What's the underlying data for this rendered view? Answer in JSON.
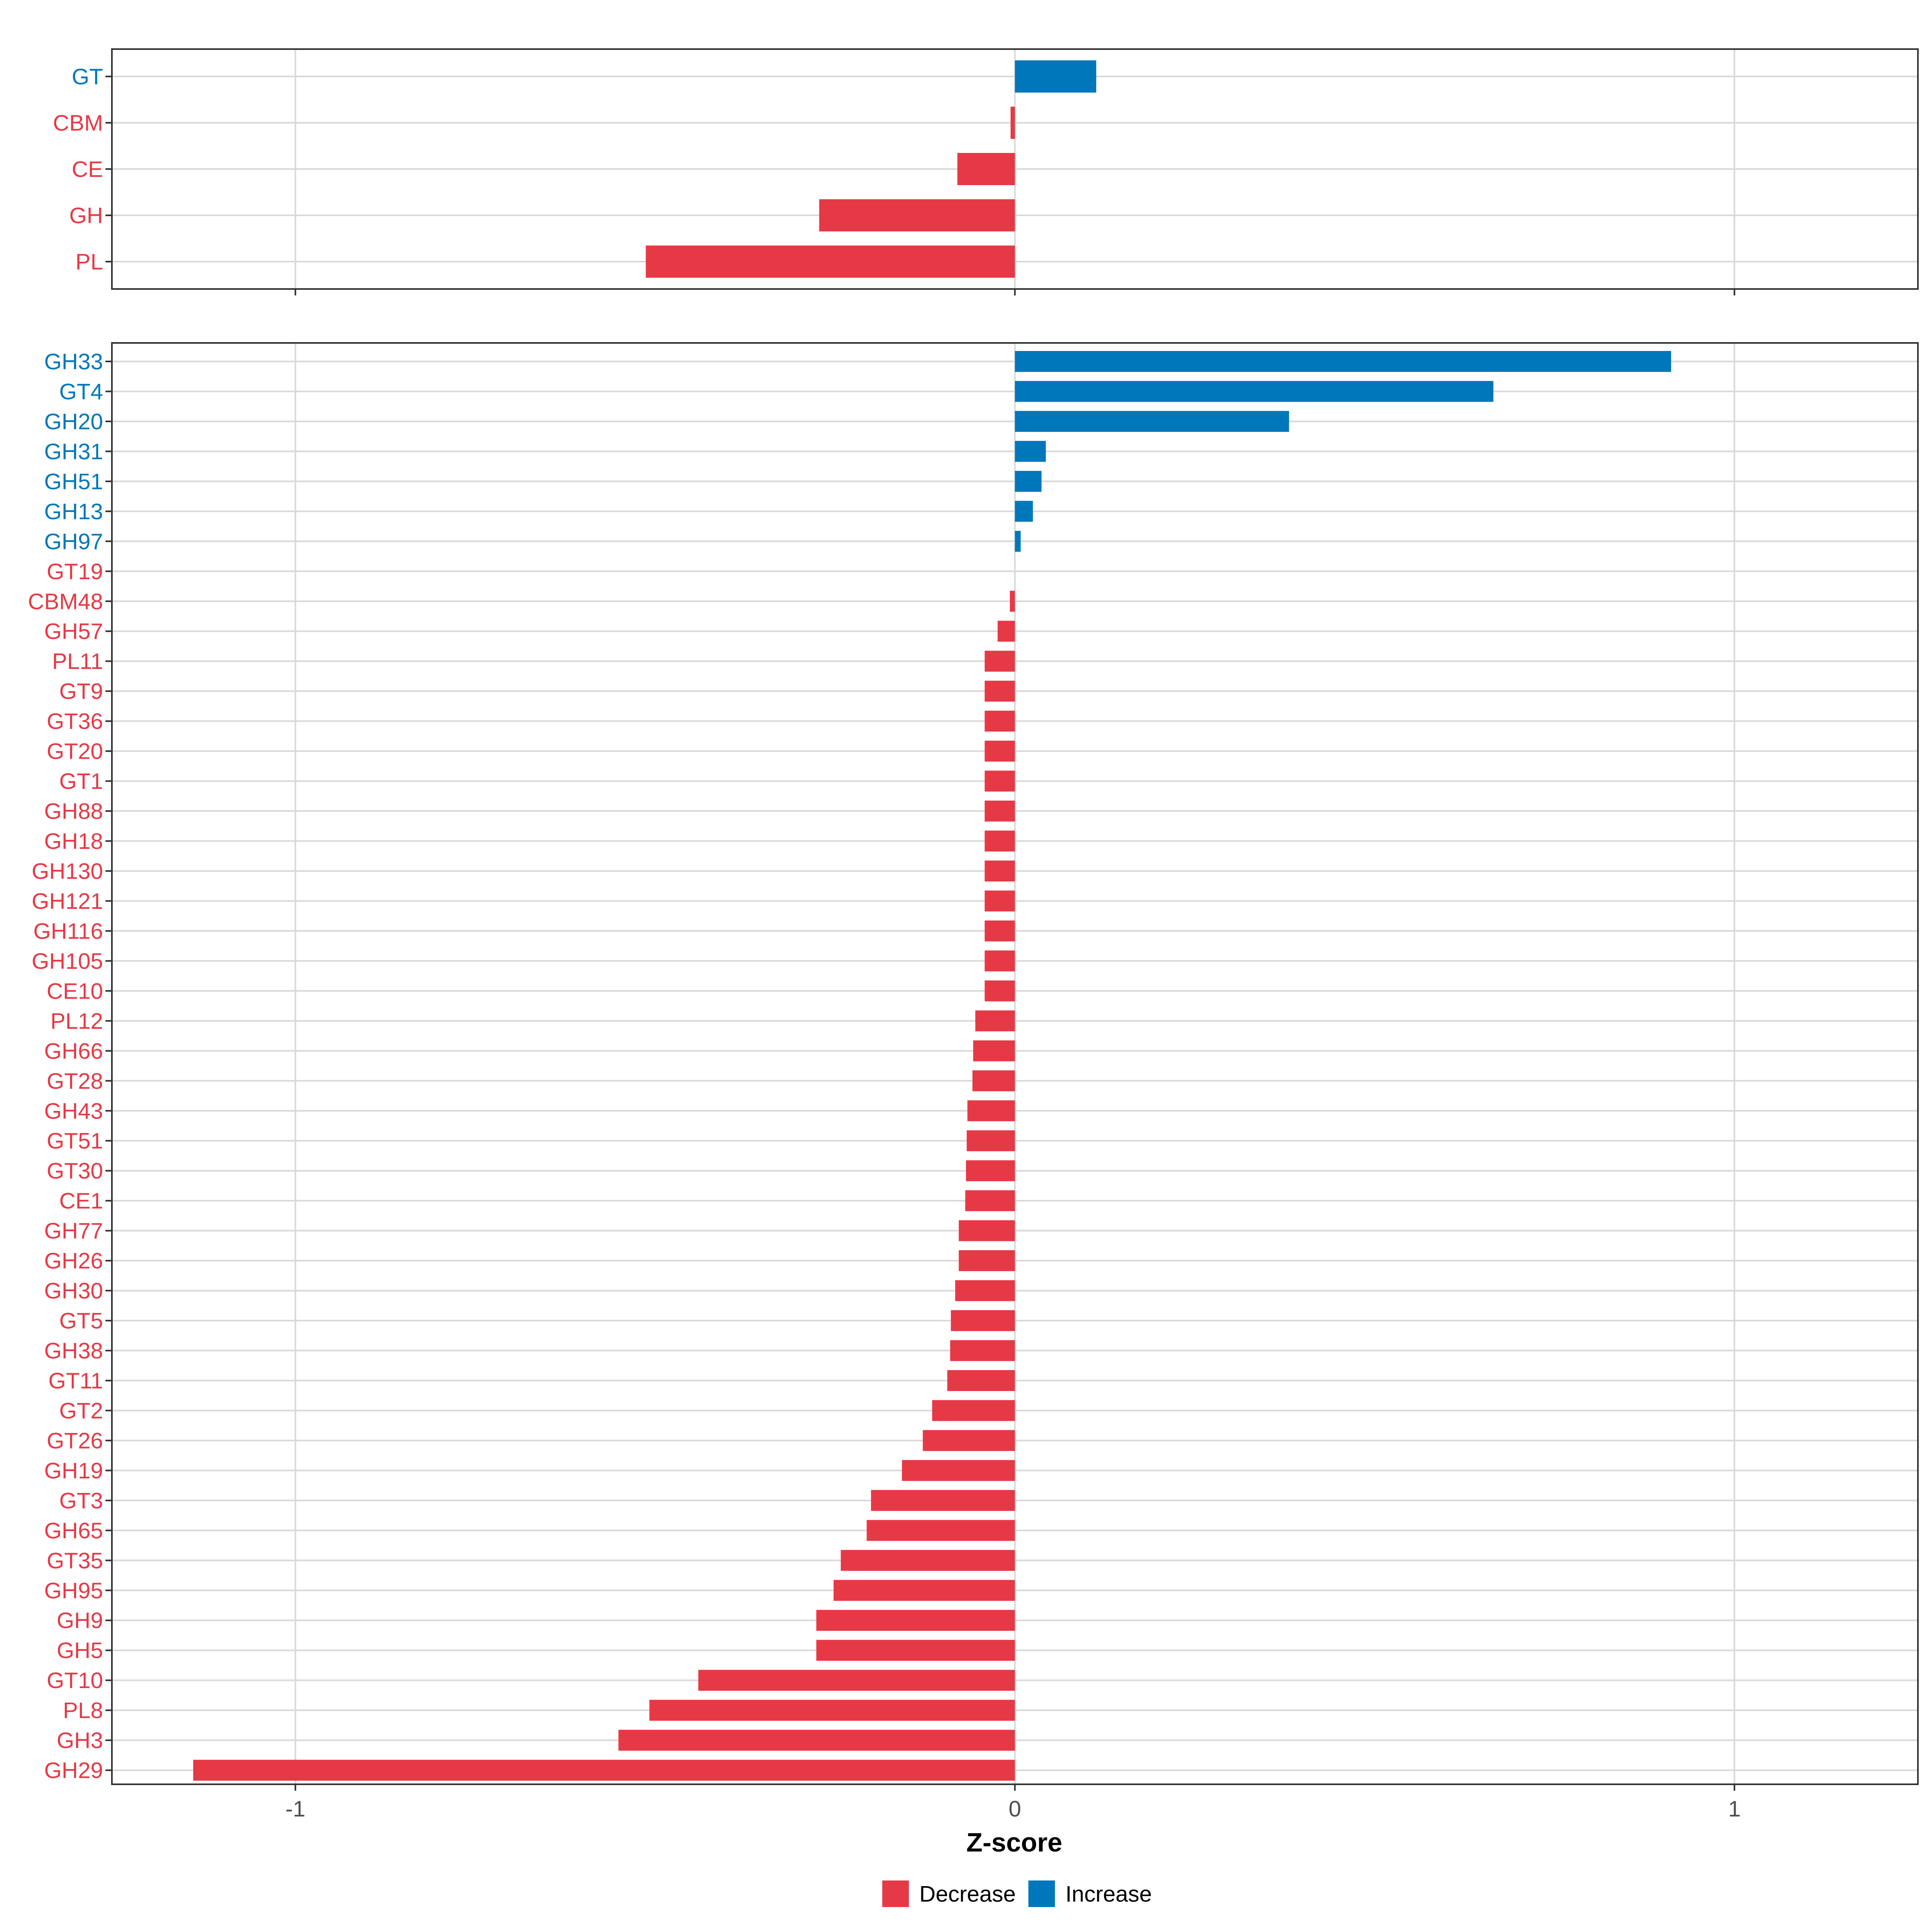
{
  "chart_data": [
    {
      "type": "bar",
      "orientation": "horizontal",
      "panel": "top",
      "categories": [
        "GT",
        "CBM",
        "CE",
        "GH",
        "PL"
      ],
      "values": [
        0.113,
        -0.006,
        -0.08,
        -0.272,
        -0.513
      ],
      "xlim": [
        -1.255,
        1.255
      ],
      "xticks": [
        -1,
        0,
        1
      ],
      "xtick_labels": [
        "",
        "",
        ""
      ],
      "grid": true
    },
    {
      "type": "bar",
      "orientation": "horizontal",
      "panel": "bottom",
      "categories": [
        "GH33",
        "GT4",
        "GH20",
        "GH31",
        "GH51",
        "GH13",
        "GH97",
        "GT19",
        "CBM48",
        "GH57",
        "PL11",
        "GT9",
        "GT36",
        "GT20",
        "GT1",
        "GH88",
        "GH18",
        "GH130",
        "GH121",
        "GH116",
        "GH105",
        "CE10",
        "PL12",
        "GH66",
        "GT28",
        "GH43",
        "GT51",
        "GT30",
        "CE1",
        "GH77",
        "GH26",
        "GH30",
        "GT5",
        "GH38",
        "GT11",
        "GT2",
        "GT26",
        "GH19",
        "GT3",
        "GH65",
        "GT35",
        "GH95",
        "GH9",
        "GH5",
        "GT10",
        "PL8",
        "GH3",
        "GH29"
      ],
      "values": [
        0.912,
        0.665,
        0.381,
        0.043,
        0.037,
        0.025,
        0.008,
        0,
        -0.007,
        -0.024,
        -0.042,
        -0.042,
        -0.042,
        -0.042,
        -0.042,
        -0.042,
        -0.042,
        -0.042,
        -0.042,
        -0.042,
        -0.042,
        -0.042,
        -0.055,
        -0.058,
        -0.059,
        -0.066,
        -0.067,
        -0.068,
        -0.069,
        -0.078,
        -0.078,
        -0.083,
        -0.089,
        -0.09,
        -0.094,
        -0.115,
        -0.128,
        -0.157,
        -0.2,
        -0.206,
        -0.242,
        -0.252,
        -0.276,
        -0.276,
        -0.44,
        -0.508,
        -0.551,
        -1.142
      ],
      "xlim": [
        -1.255,
        1.255
      ],
      "xticks": [
        -1,
        0,
        1
      ],
      "xtick_labels": [
        "-1",
        "0",
        "1"
      ],
      "xlabel": "Z-score",
      "grid": true
    }
  ],
  "legend": {
    "placement": "bottom",
    "items": [
      {
        "label": "Decrease",
        "color": "#E63946"
      },
      {
        "label": "Increase",
        "color": "#0077BB"
      }
    ]
  },
  "colors": {
    "decrease": "#E63946",
    "increase": "#0077BB",
    "grid": "#D9D9D9",
    "frame": "#333333",
    "axis_text": "#4D4D4D"
  }
}
